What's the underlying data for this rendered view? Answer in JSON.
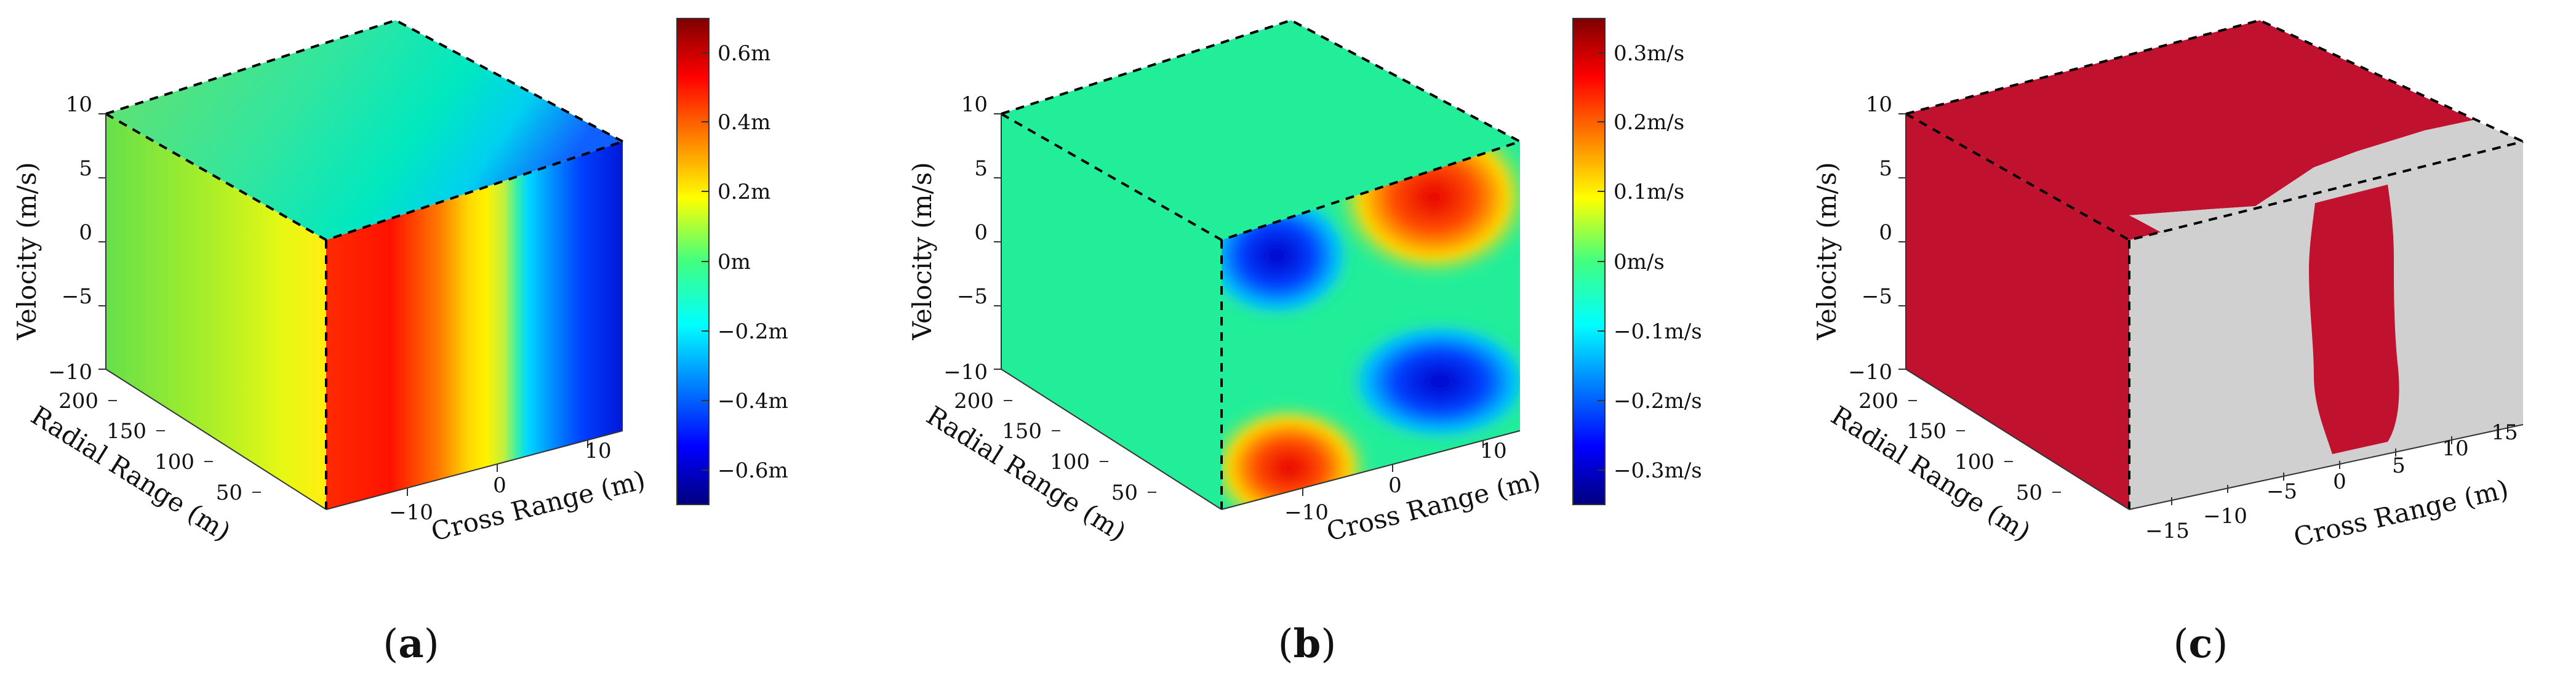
{
  "chart_data": [
    {
      "type": "heatmap",
      "panel_label": "a",
      "quantity": "range offset",
      "colormap": "jet",
      "zlabel": "Velocity (m/s)",
      "ylabel": "Radial Range (m)",
      "xlabel": "Cross Range (m)",
      "z_ticks": [
        "10",
        "5",
        "0",
        "−5",
        "−10"
      ],
      "y_ticks": [
        "200",
        "150",
        "100",
        "50"
      ],
      "x_ticks": [
        "−10",
        "0",
        "10"
      ],
      "colorbar": {
        "ticks": [
          "0.6m",
          "0.4m",
          "0.2m",
          "0m",
          "−0.2m",
          "−0.4m",
          "−0.6m"
        ],
        "range": [
          -0.7,
          0.7
        ]
      }
    },
    {
      "type": "heatmap",
      "panel_label": "b",
      "quantity": "velocity offset",
      "colormap": "jet",
      "zlabel": "Velocity (m/s)",
      "ylabel": "Radial Range (m)",
      "xlabel": "Cross Range (m)",
      "z_ticks": [
        "10",
        "5",
        "0",
        "−5",
        "−10"
      ],
      "y_ticks": [
        "200",
        "150",
        "100",
        "50"
      ],
      "x_ticks": [
        "−10",
        "0",
        "10"
      ],
      "colorbar": {
        "ticks": [
          "0.3m/s",
          "0.2m/s",
          "0.1m/s",
          "0m/s",
          "−0.1m/s",
          "−0.2m/s",
          "−0.3m/s"
        ],
        "range": [
          -0.35,
          0.35
        ]
      }
    },
    {
      "type": "heatmap",
      "panel_label": "c",
      "quantity": "binary region map",
      "colors": {
        "region": "#c0112e",
        "background": "#d0d0d0"
      },
      "zlabel": "Velocity (m/s)",
      "ylabel": "Radial Range (m)",
      "xlabel": "Cross Range (m)",
      "z_ticks": [
        "10",
        "5",
        "0",
        "−5",
        "−10"
      ],
      "y_ticks": [
        "200",
        "150",
        "100",
        "50"
      ],
      "x_ticks": [
        "−15",
        "−10",
        "−5",
        "0",
        "5",
        "10",
        "15"
      ]
    }
  ]
}
